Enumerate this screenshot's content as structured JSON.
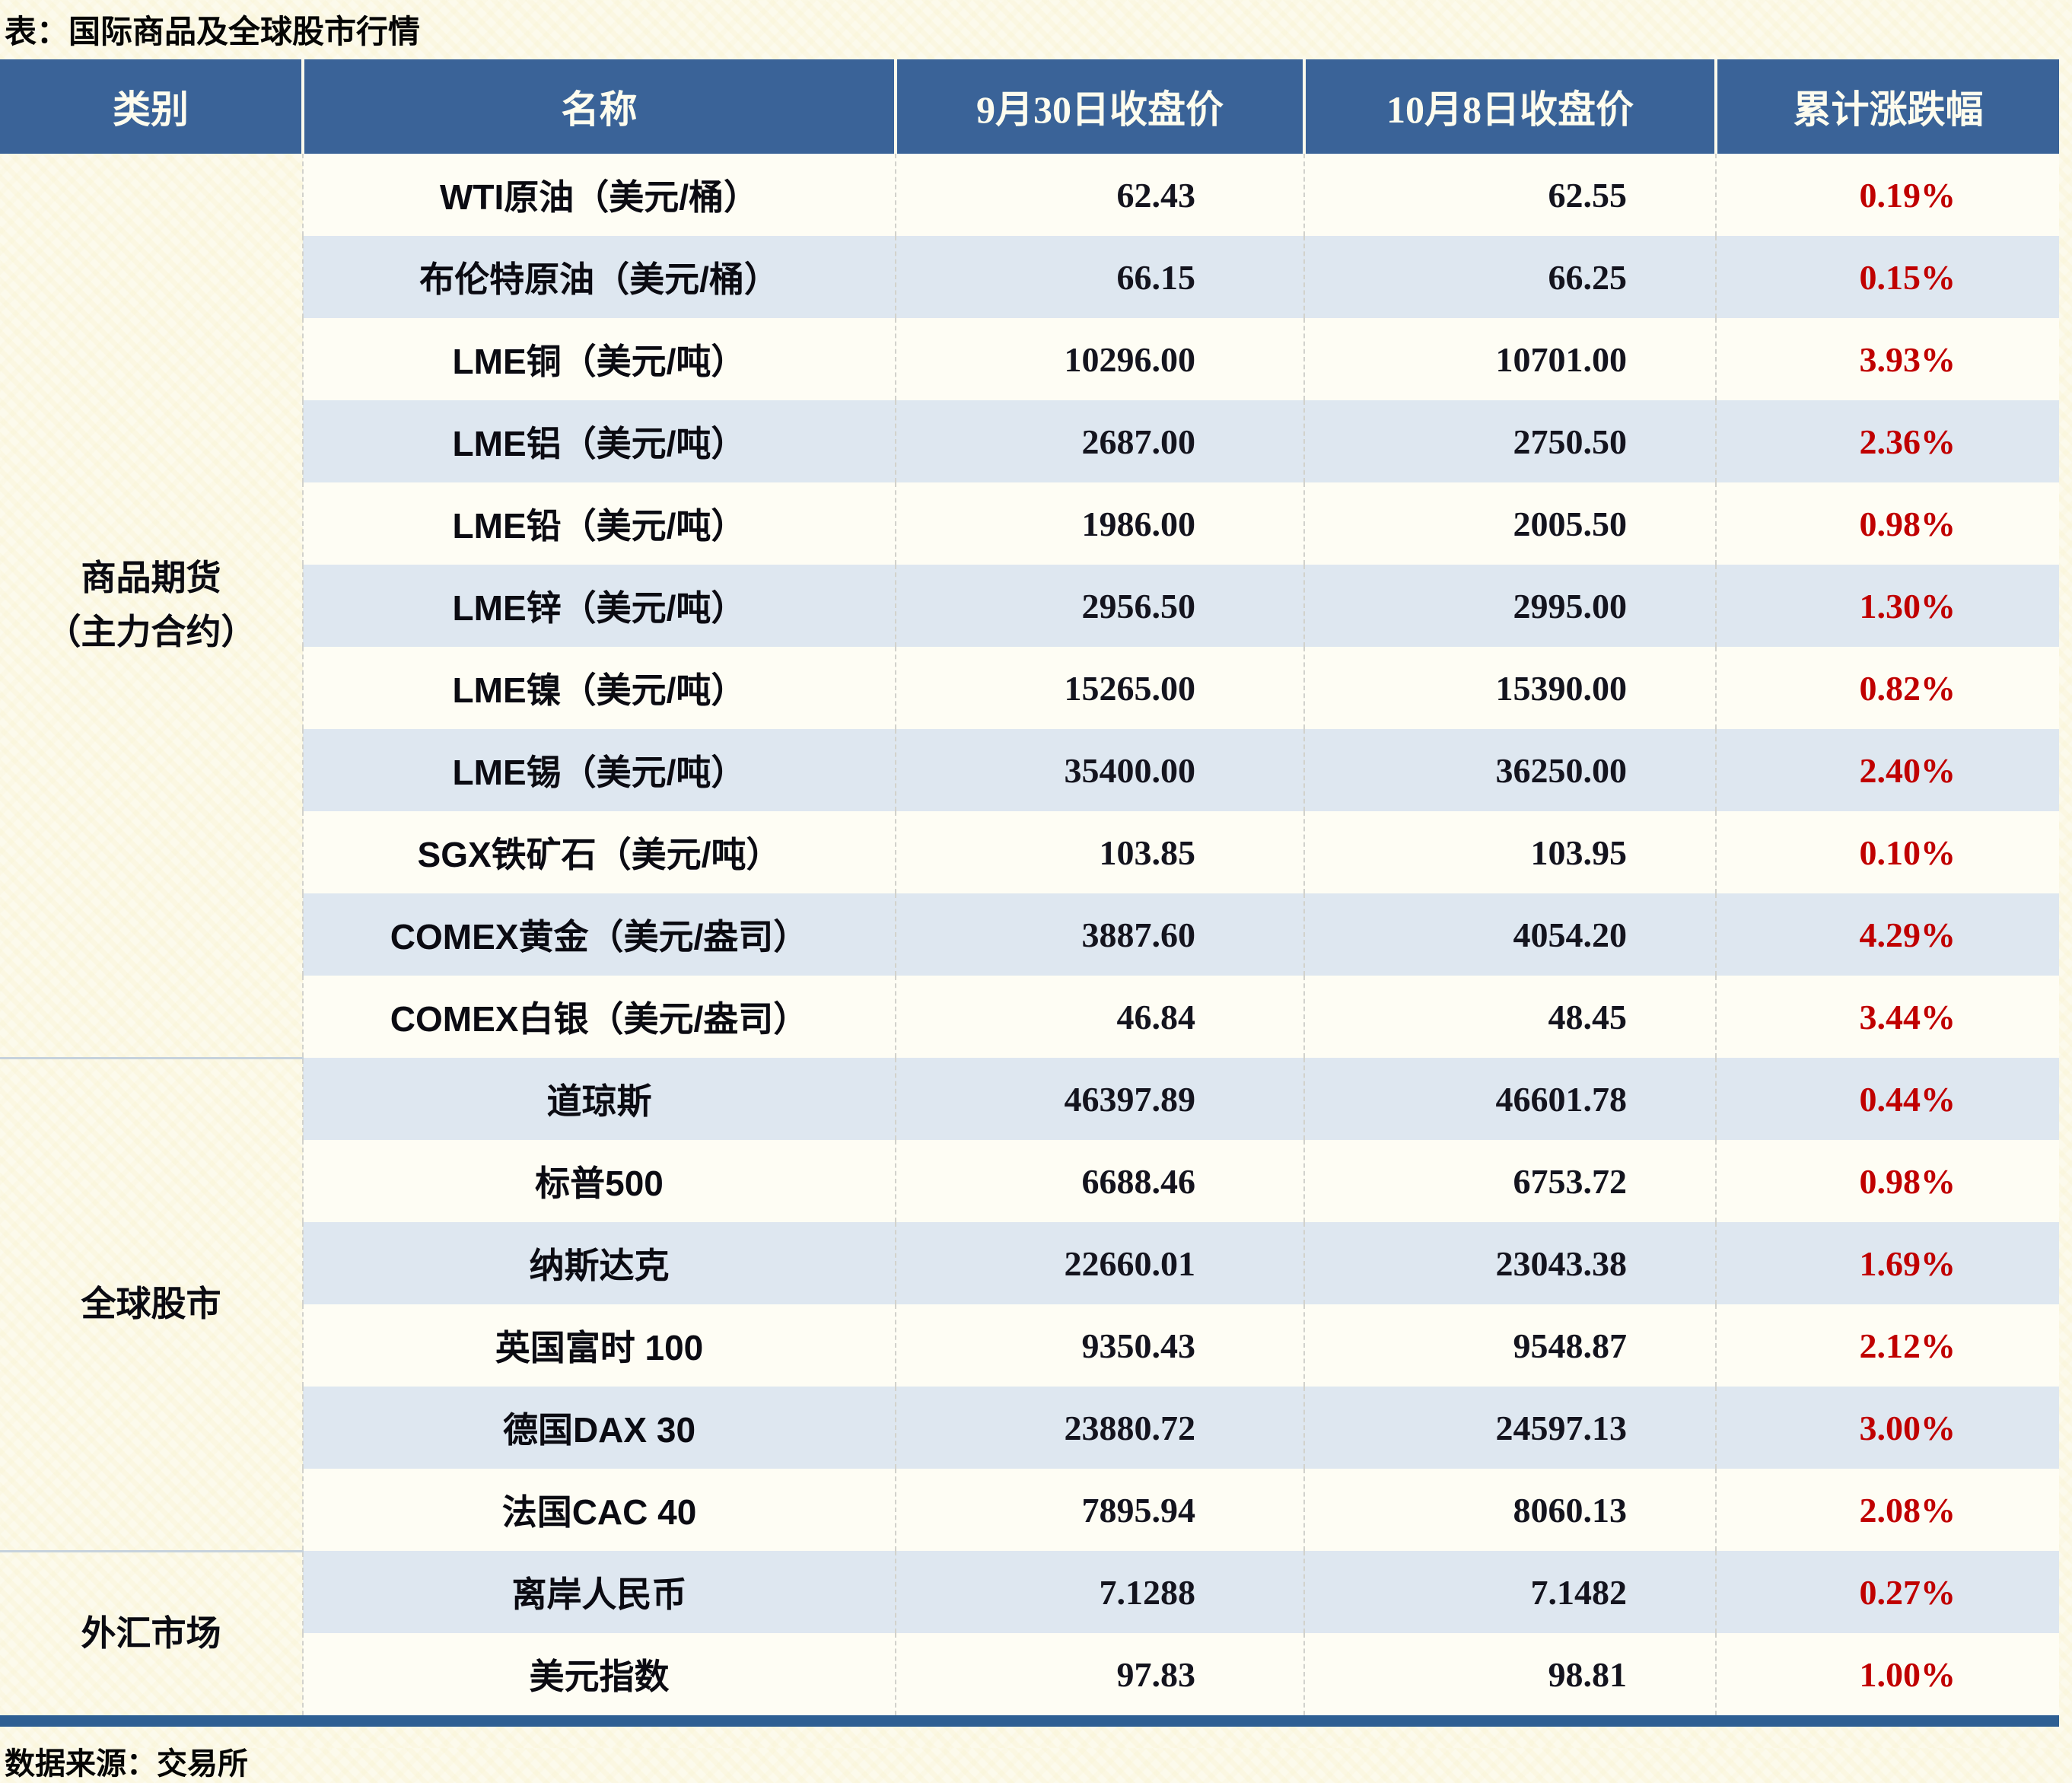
{
  "title": "表：国际商品及全球股市行情",
  "footer": "数据来源：交易所",
  "colors": {
    "page_bg": "#FCFAEC",
    "header_bg": "#3A6398",
    "row_base": "#FEFDF4",
    "row_alt": "#DEE7F0",
    "change": "#C00000",
    "rule": "#2E5F93"
  },
  "table": {
    "columns": [
      "类别",
      "名称",
      "9月30日收盘价",
      "10月8日收盘价",
      "累计涨跌幅"
    ],
    "categories": [
      {
        "label": "商品期货（主力合约）",
        "lines": [
          "商品期货",
          "（主力合约）"
        ],
        "rows": [
          {
            "name": "WTI原油（美元/桶）",
            "close_0930": "62.43",
            "close_1008": "62.55",
            "change": "0.19%"
          },
          {
            "name": "布伦特原油（美元/桶）",
            "close_0930": "66.15",
            "close_1008": "66.25",
            "change": "0.15%"
          },
          {
            "name": "LME铜（美元/吨）",
            "close_0930": "10296.00",
            "close_1008": "10701.00",
            "change": "3.93%"
          },
          {
            "name": "LME铝（美元/吨）",
            "close_0930": "2687.00",
            "close_1008": "2750.50",
            "change": "2.36%"
          },
          {
            "name": "LME铅（美元/吨）",
            "close_0930": "1986.00",
            "close_1008": "2005.50",
            "change": "0.98%"
          },
          {
            "name": "LME锌（美元/吨）",
            "close_0930": "2956.50",
            "close_1008": "2995.00",
            "change": "1.30%"
          },
          {
            "name": "LME镍（美元/吨）",
            "close_0930": "15265.00",
            "close_1008": "15390.00",
            "change": "0.82%"
          },
          {
            "name": "LME锡（美元/吨）",
            "close_0930": "35400.00",
            "close_1008": "36250.00",
            "change": "2.40%"
          },
          {
            "name": "SGX铁矿石（美元/吨）",
            "close_0930": "103.85",
            "close_1008": "103.95",
            "change": "0.10%"
          },
          {
            "name": "COMEX黄金（美元/盎司）",
            "close_0930": "3887.60",
            "close_1008": "4054.20",
            "change": "4.29%"
          },
          {
            "name": "COMEX白银（美元/盎司）",
            "close_0930": "46.84",
            "close_1008": "48.45",
            "change": "3.44%"
          }
        ]
      },
      {
        "label": "全球股市",
        "lines": [
          "全球股市"
        ],
        "rows": [
          {
            "name": "道琼斯",
            "close_0930": "46397.89",
            "close_1008": "46601.78",
            "change": "0.44%"
          },
          {
            "name": "标普500",
            "close_0930": "6688.46",
            "close_1008": "6753.72",
            "change": "0.98%"
          },
          {
            "name": "纳斯达克",
            "close_0930": "22660.01",
            "close_1008": "23043.38",
            "change": "1.69%"
          },
          {
            "name": "英国富时 100",
            "close_0930": "9350.43",
            "close_1008": "9548.87",
            "change": "2.12%"
          },
          {
            "name": "德国DAX 30",
            "close_0930": "23880.72",
            "close_1008": "24597.13",
            "change": "3.00%"
          },
          {
            "name": "法国CAC 40",
            "close_0930": "7895.94",
            "close_1008": "8060.13",
            "change": "2.08%"
          }
        ]
      },
      {
        "label": "外汇市场",
        "lines": [
          "外汇市场"
        ],
        "rows": [
          {
            "name": "离岸人民币",
            "close_0930": "7.1288",
            "close_1008": "7.1482",
            "change": "0.27%"
          },
          {
            "name": "美元指数",
            "close_0930": "97.83",
            "close_1008": "98.81",
            "change": "1.00%"
          }
        ]
      }
    ]
  }
}
